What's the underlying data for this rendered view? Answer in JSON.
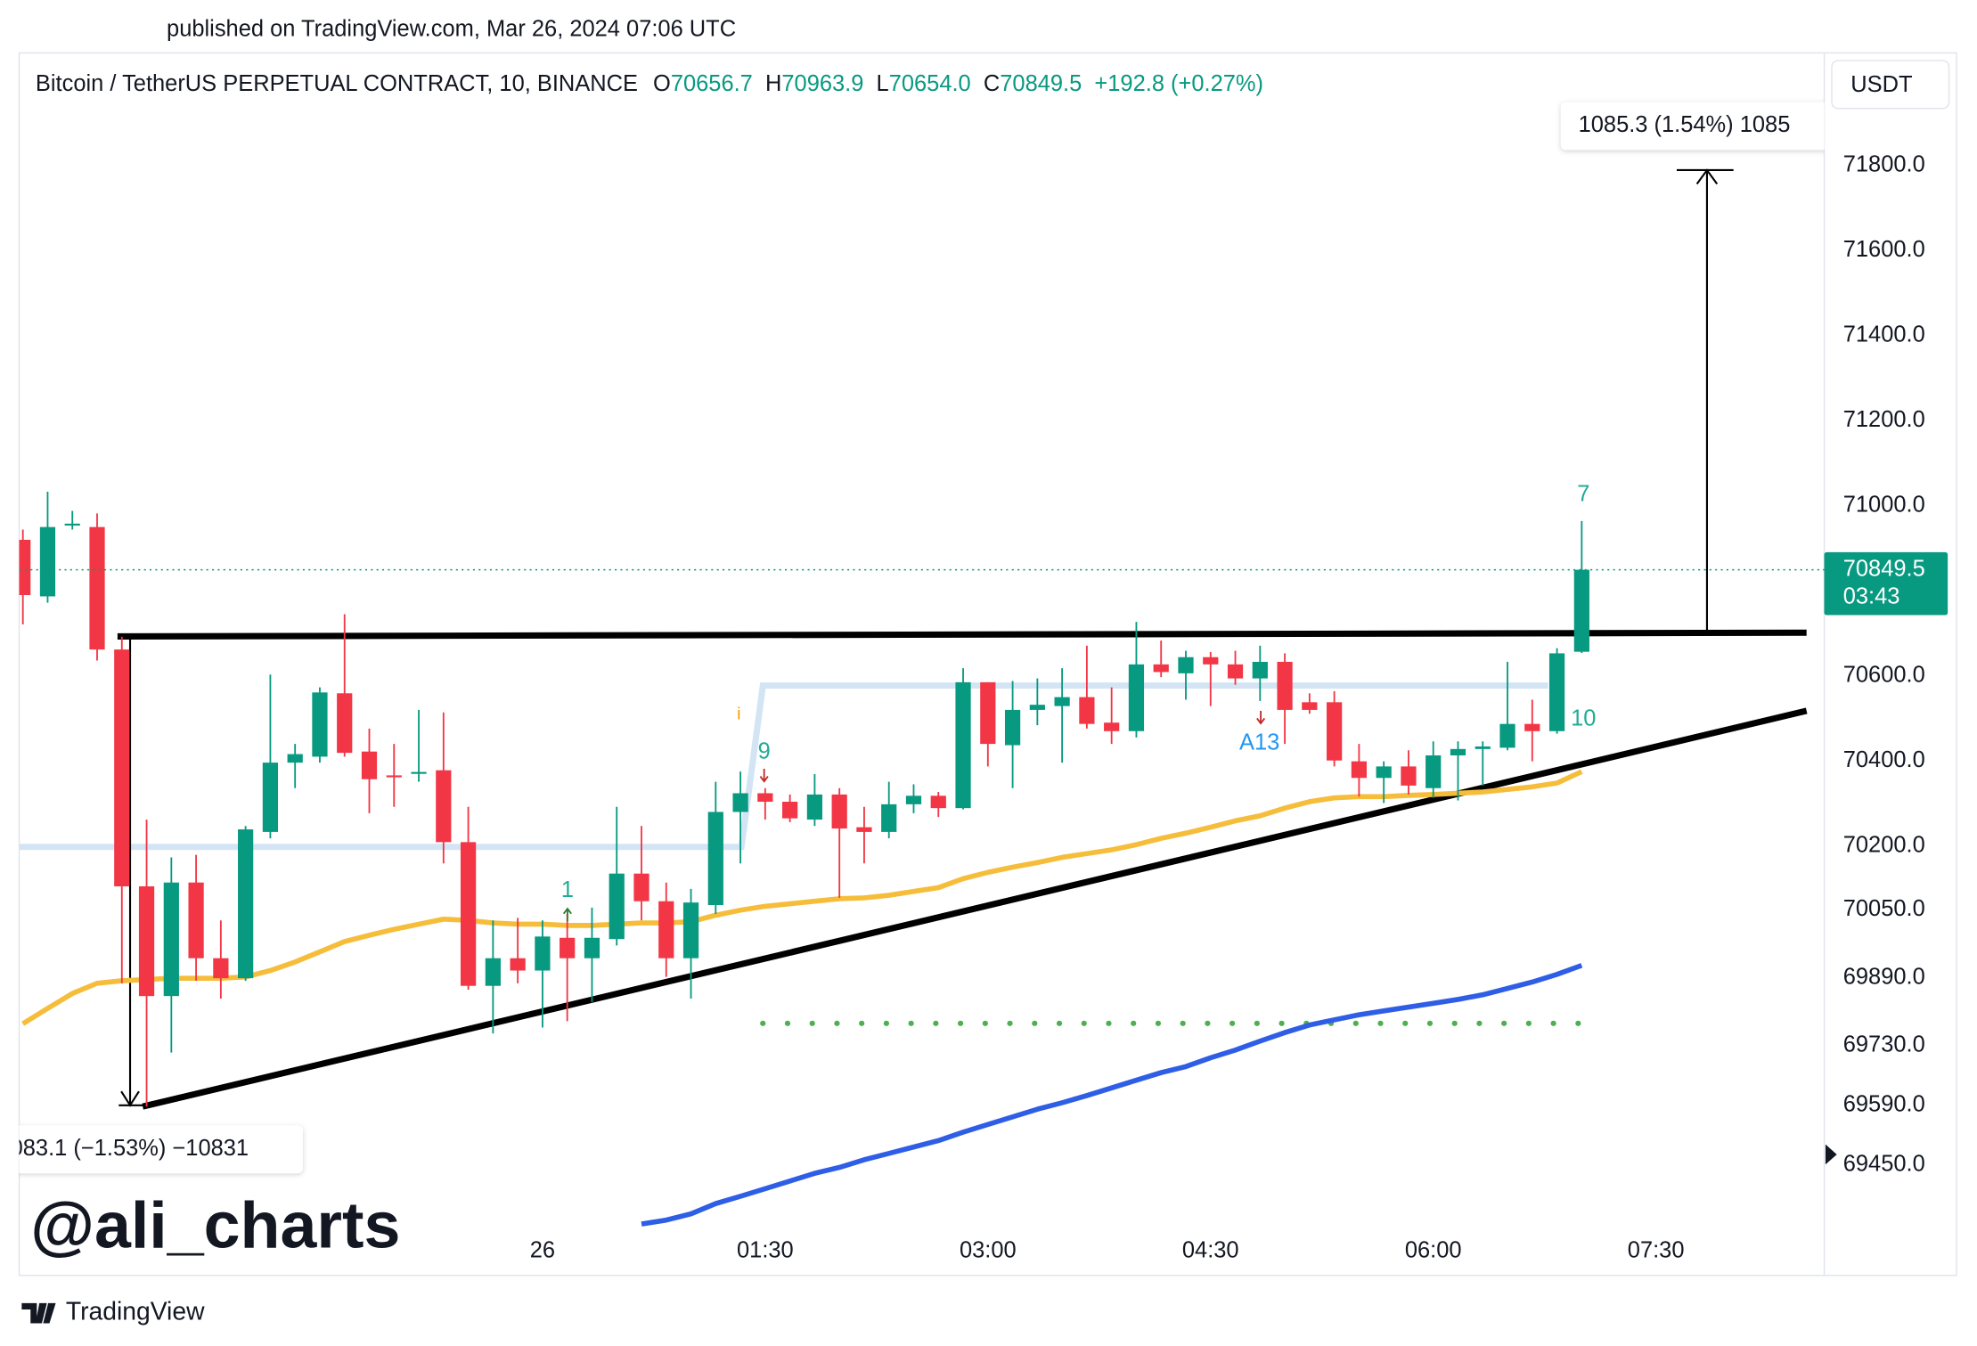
{
  "header": {
    "published": "published on TradingView.com, Mar 26, 2024 07:06 UTC",
    "symbol": "Bitcoin / TetherUS PERPETUAL CONTRACT, 10, BINANCE",
    "ohlc_letters": [
      "O",
      "H",
      "L",
      "C"
    ],
    "ohlc": [
      "70656.7",
      "70963.9",
      "70654.0",
      "70849.5"
    ],
    "change": "+192.8 (+0.27%)",
    "currency": "USDT"
  },
  "chart_data": {
    "type": "candlestick",
    "up_color": "#089981",
    "down_color": "#f23645",
    "candles": {
      "open": [
        70920,
        70787,
        70956,
        70950,
        70662,
        70105,
        69847,
        70114,
        69936,
        69889,
        70233,
        70396,
        70410,
        70559,
        70422,
        70366,
        70372,
        70378,
        70209,
        69871,
        69936,
        69907,
        69984,
        69936,
        69981,
        70135,
        70070,
        69936,
        70061,
        70280,
        70324,
        70304,
        70262,
        70321,
        70244,
        70233,
        70298,
        70318,
        70289,
        70585,
        70437,
        70520,
        70529,
        70550,
        70490,
        70470,
        70627,
        70606,
        70644,
        70627,
        70594,
        70633,
        70538,
        70538,
        70399,
        70360,
        70387,
        70336,
        70413,
        70428,
        70431,
        70487,
        70470,
        70656.7
      ],
      "high": [
        70944,
        71033,
        70988,
        70982,
        70692,
        70262,
        70173,
        70179,
        70025,
        70247,
        70603,
        70440,
        70573,
        70745,
        70476,
        70440,
        70520,
        70514,
        70292,
        70025,
        70031,
        70025,
        70040,
        70055,
        70292,
        70247,
        70114,
        70099,
        70351,
        70375,
        70336,
        70321,
        70369,
        70336,
        70292,
        70351,
        70345,
        70327,
        70618,
        70585,
        70588,
        70594,
        70618,
        70671,
        70573,
        70727,
        70683,
        70659,
        70656,
        70659,
        70671,
        70653,
        70559,
        70564,
        70440,
        70399,
        70425,
        70446,
        70446,
        70446,
        70633,
        70544,
        70665,
        70963.9
      ],
      "low": [
        70721,
        70772,
        70944,
        70636,
        69877,
        69587,
        69714,
        69883,
        69841,
        69883,
        70218,
        70336,
        70396,
        70410,
        70277,
        70292,
        70351,
        70159,
        69862,
        69759,
        69877,
        69773,
        69788,
        69833,
        69966,
        70025,
        69892,
        69841,
        70040,
        70159,
        70262,
        70256,
        70247,
        70078,
        70159,
        70218,
        70277,
        70268,
        70286,
        70387,
        70336,
        70484,
        70396,
        70476,
        70440,
        70455,
        70597,
        70544,
        70529,
        70579,
        70541,
        70440,
        70511,
        70387,
        70316,
        70301,
        70321,
        70313,
        70307,
        70342,
        70425,
        70399,
        70464,
        70654
      ],
      "close": [
        70790,
        70950,
        70958,
        70662,
        70105,
        69847,
        70114,
        69936,
        69889,
        70239,
        70396,
        70416,
        70561,
        70419,
        70357,
        70364,
        70374,
        70209,
        69871,
        69936,
        69907,
        69987,
        69936,
        69984,
        70135,
        70070,
        69936,
        70067,
        70280,
        70324,
        70304,
        70265,
        70321,
        70241,
        70233,
        70298,
        70318,
        70289,
        70585,
        70440,
        70520,
        70532,
        70550,
        70487,
        70470,
        70627,
        70609,
        70644,
        70627,
        70594,
        70633,
        70520,
        70520,
        70401,
        70360,
        70387,
        70342,
        70413,
        70428,
        70434,
        70487,
        70470,
        70653,
        70849.5
      ]
    },
    "overlays": [
      {
        "color": "#f5bd3a",
        "values": [
          69782,
          69818,
          69853,
          69877,
          69883,
          69886,
          69889,
          69889,
          69889,
          69892,
          69907,
          69927,
          69951,
          69975,
          69990,
          70004,
          70016,
          70028,
          70025,
          70019,
          70016,
          70016,
          70013,
          70013,
          70016,
          70019,
          70019,
          70022,
          70037,
          70049,
          70058,
          70064,
          70070,
          70076,
          70078,
          70084,
          70093,
          70102,
          70123,
          70138,
          70150,
          70161,
          70173,
          70182,
          70191,
          70203,
          70218,
          70230,
          70244,
          70259,
          70271,
          70289,
          70304,
          70313,
          70316,
          70316,
          70319,
          70321,
          70324,
          70327,
          70333,
          70339,
          70348,
          70375
        ]
      },
      {
        "color": "#2f5ee6",
        "values": [
          null,
          null,
          null,
          null,
          null,
          null,
          null,
          null,
          null,
          null,
          null,
          null,
          null,
          null,
          null,
          null,
          null,
          null,
          null,
          null,
          null,
          null,
          null,
          null,
          null,
          69311,
          69320,
          69335,
          69359,
          69376,
          69394,
          69412,
          69430,
          69444,
          69462,
          69477,
          69492,
          69507,
          69527,
          69545,
          69563,
          69581,
          69596,
          69613,
          69631,
          69649,
          69667,
          69681,
          69702,
          69720,
          69741,
          69761,
          69779,
          69791,
          69803,
          69812,
          69821,
          69830,
          69839,
          69850,
          69865,
          69880,
          69898,
          69919
        ]
      }
    ],
    "xlim": [
      -0.15,
      72.8
    ],
    "xticks": [
      {
        "value": 21,
        "label": "26"
      },
      {
        "value": 30,
        "label": "01:30"
      },
      {
        "value": 39,
        "label": "03:00"
      },
      {
        "value": 48,
        "label": "04:30"
      },
      {
        "value": 57,
        "label": "06:00"
      },
      {
        "value": 66,
        "label": "07:30"
      }
    ],
    "ylim": [
      69190,
      72065
    ],
    "yticks": [
      {
        "value": 71800,
        "label": "71800.0"
      },
      {
        "value": 71600,
        "label": "71600.0"
      },
      {
        "value": 71400,
        "label": "71400.0"
      },
      {
        "value": 71200,
        "label": "71200.0"
      },
      {
        "value": 71000,
        "label": "71000.0"
      },
      {
        "value": 70600,
        "label": "70600.0"
      },
      {
        "value": 70400,
        "label": "70400.0"
      },
      {
        "value": 70200,
        "label": "70200.0"
      },
      {
        "value": 70050,
        "label": "70050.0"
      },
      {
        "value": 69890,
        "label": "69890.0"
      },
      {
        "value": 69730,
        "label": "69730.0"
      },
      {
        "value": 69590,
        "label": "69590.0"
      },
      {
        "value": 69450,
        "label": "69450.0"
      }
    ],
    "countdown": "03:43",
    "annotations": [
      "7",
      "10",
      "9",
      "1",
      "A13",
      "i"
    ],
    "measure_labels": [
      "1085.3 (1.54%) 1085",
      "083.1 (−1.53%) −10831"
    ]
  },
  "watermark": "@ali_charts",
  "footer": "TradingView"
}
